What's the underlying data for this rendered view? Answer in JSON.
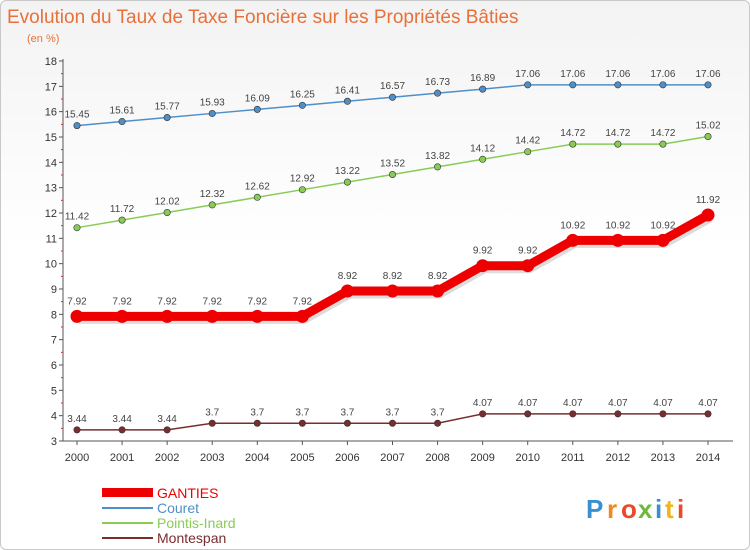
{
  "chart_data": {
    "type": "line",
    "title": "Evolution du Taux de Taxe Foncière sur les Propriétés Bâties",
    "subtitle": "(en %)",
    "x": [
      2000,
      2001,
      2002,
      2003,
      2004,
      2005,
      2006,
      2007,
      2008,
      2009,
      2010,
      2011,
      2012,
      2013,
      2014
    ],
    "ylim": [
      3,
      18
    ],
    "yticks": [
      3,
      4,
      5,
      6,
      7,
      8,
      9,
      10,
      11,
      12,
      13,
      14,
      15,
      16,
      17,
      18
    ],
    "grid": false,
    "legend_position": "bottom-left",
    "series": [
      {
        "name": "GANTIES",
        "color": "#ee0000",
        "emphasis": true,
        "values": [
          7.92,
          7.92,
          7.92,
          7.92,
          7.92,
          7.92,
          8.92,
          8.92,
          8.92,
          9.92,
          9.92,
          10.92,
          10.92,
          10.92,
          11.92
        ],
        "labels": [
          "7.92",
          "7.92",
          "7.92",
          "7.92",
          "7.92",
          "7.92",
          "8.92",
          "8.92",
          "8.92",
          "9.92",
          "9.92",
          "10.92",
          "10.92",
          "10.92",
          "11.92"
        ]
      },
      {
        "name": "Couret",
        "color": "#4f8fc8",
        "emphasis": false,
        "values": [
          15.45,
          15.61,
          15.77,
          15.93,
          16.09,
          16.25,
          16.41,
          16.57,
          16.73,
          16.89,
          17.06,
          17.06,
          17.06,
          17.06,
          17.06
        ],
        "labels": [
          "15.45",
          "15.61",
          "15.77",
          "15.93",
          "16.09",
          "16.25",
          "16.41",
          "16.57",
          "16.73",
          "16.89",
          "17.06",
          "17.06",
          "17.06",
          "17.06",
          "17.06"
        ]
      },
      {
        "name": "Pointis-Inard",
        "color": "#88cc55",
        "emphasis": false,
        "values": [
          11.42,
          11.72,
          12.02,
          12.32,
          12.62,
          12.92,
          13.22,
          13.52,
          13.82,
          14.12,
          14.42,
          14.72,
          14.72,
          14.72,
          15.02
        ],
        "labels": [
          "11.42",
          "11.72",
          "12.02",
          "12.32",
          "12.62",
          "12.92",
          "13.22",
          "13.52",
          "13.82",
          "14.12",
          "14.42",
          "14.72",
          "14.72",
          "14.72",
          "15.02"
        ]
      },
      {
        "name": "Montespan",
        "color": "#7a2d2d",
        "emphasis": false,
        "values": [
          3.44,
          3.44,
          3.44,
          3.7,
          3.7,
          3.7,
          3.7,
          3.7,
          3.7,
          4.07,
          4.07,
          4.07,
          4.07,
          4.07,
          4.07
        ],
        "labels": [
          "3.44",
          "3.44",
          "3.44",
          "3.7",
          "3.7",
          "3.7",
          "3.7",
          "3.7",
          "3.7",
          "4.07",
          "4.07",
          "4.07",
          "4.07",
          "4.07",
          "4.07"
        ]
      }
    ]
  },
  "logo": {
    "letters": [
      "P",
      "r",
      "o",
      "x",
      "i",
      "t",
      "i"
    ],
    "colors": [
      "#3a8fd0",
      "#f08a1c",
      "#e84a2a",
      "#6cba3c",
      "#3a8fd0",
      "#f0b41c",
      "#e84a2a"
    ]
  }
}
